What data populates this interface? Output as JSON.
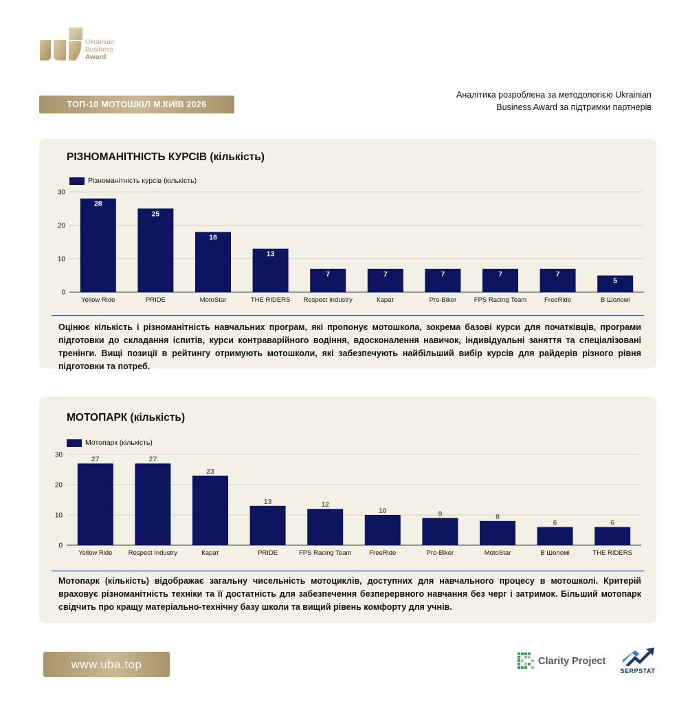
{
  "logo": {
    "line1": "Ukrainian",
    "line2": "Business",
    "line3": "Award"
  },
  "banner": {
    "label": "ТОП-10 МОТОШКІЛ М.КИЇВ 2026"
  },
  "note": {
    "text": "Аналітика розроблена за методологією Ukrainian Business Award за підтримки партнерів"
  },
  "colors": {
    "bar": "#0d1560",
    "panel_bg": "#f3f0e6",
    "gold": "#b9a27a"
  },
  "panels": [
    {
      "title": "РІЗНОМАНІТНІСТЬ КУРСІВ (кількість)",
      "description": "Оцінює кількість і різноманітність навчальних програм, які пропонує мотошкола, зокрема базові курси для початківців, програми підготовки до складання іспитів, курси контраварійного водіння, вдосконалення навичок, індивідуальні заняття та спеціалізовані тренінги. Вищі позиції в рейтингу отримують мотошколи, які забезпечують найбільший вибір курсів для райдерів різного рівня підготовки та потреб."
    },
    {
      "title": "МОТОПАРК (кількість)",
      "description": "Мотопарк (кількість) відображає загальну чисельність мотоциклів, доступних для навчального процесу в мотошколі. Критерій враховує різноманітність техніки та її достатність для забезпечення безперервного навчання без черг і затримок. Більший мотопарк свідчить про кращу матеріально-технічну базу школи та вищий рівень комфорту для учнів."
    }
  ],
  "chart_data": [
    {
      "type": "bar",
      "title": "РІЗНОМАНІТНІСТЬ КУРСІВ (кількість)",
      "categories": [
        "Yellow Ride",
        "PRIDE",
        "MotoStar",
        "THE RIDERS",
        "Respect Industry",
        "Карат",
        "Pro-Biker",
        "FPS Racing Team",
        "FreeRide",
        "В Шоломі"
      ],
      "series": [
        {
          "name": "Різноманітність курсів (кількість)",
          "values": [
            28,
            25,
            18,
            13,
            7,
            7,
            7,
            7,
            7,
            5
          ]
        }
      ],
      "yticks": [
        "0",
        "10",
        "20",
        "30"
      ],
      "ylim": [
        0,
        30
      ],
      "grid": true,
      "legend": "top-left",
      "labels_inside": true
    },
    {
      "type": "bar",
      "title": "МОТОПАРК (кількість)",
      "categories": [
        "Yellow Ride",
        "Respect Industry",
        "Карат",
        "PRIDE",
        "FPS Racing Team",
        "FreeRide",
        "Pro-Biker",
        "MotoStar",
        "В Шоломі",
        "THE RIDERS"
      ],
      "series": [
        {
          "name": "Мотопарк (кількість)",
          "values": [
            27,
            27,
            23,
            13,
            12,
            10,
            9,
            8,
            6,
            6
          ]
        }
      ],
      "yticks": [
        "0",
        "10",
        "20",
        "30"
      ],
      "ylim": [
        0,
        30
      ],
      "grid": true,
      "legend": "top-left",
      "labels_inside": false
    }
  ],
  "footer": {
    "site": "www.uba.top",
    "partner1": "Clarity Project",
    "partner2": "SERPSTAT"
  }
}
